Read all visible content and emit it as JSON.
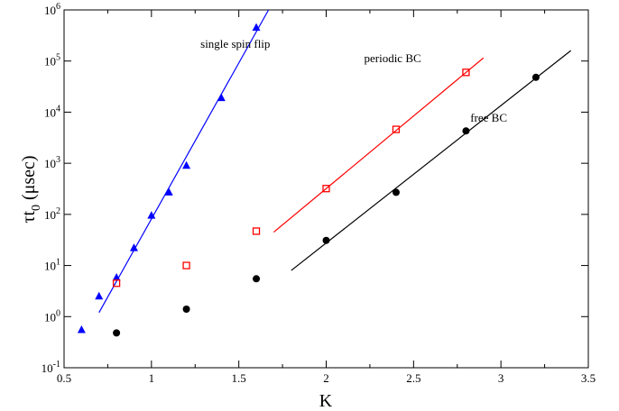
{
  "chart_data": {
    "type": "scatter",
    "xlabel": "K",
    "ylabel": "τt",
    "ylabel_subscript": "0",
    "ylabel_unit": " (μsec)",
    "xlim": [
      0.5,
      3.5
    ],
    "ylim_log10": [
      -1,
      6
    ],
    "yscale": "log",
    "grid": false,
    "x_ticks": [
      {
        "value": 0.5,
        "label": "0.5"
      },
      {
        "value": 1,
        "label": "1"
      },
      {
        "value": 1.5,
        "label": "1.5"
      },
      {
        "value": 2,
        "label": "2"
      },
      {
        "value": 2.5,
        "label": "2.5"
      },
      {
        "value": 3,
        "label": "3"
      },
      {
        "value": 3.5,
        "label": "3.5"
      }
    ],
    "y_ticks": [
      {
        "exp": -1,
        "base": "10",
        "sup": "-1"
      },
      {
        "exp": 0,
        "base": "10",
        "sup": "0"
      },
      {
        "exp": 1,
        "base": "10",
        "sup": "1"
      },
      {
        "exp": 2,
        "base": "10",
        "sup": "2"
      },
      {
        "exp": 3,
        "base": "10",
        "sup": "3"
      },
      {
        "exp": 4,
        "base": "10",
        "sup": "4"
      },
      {
        "exp": 5,
        "base": "10",
        "sup": "5"
      },
      {
        "exp": 6,
        "base": "10",
        "sup": "6"
      }
    ],
    "series": [
      {
        "name": "single spin flip",
        "marker": "triangle",
        "color": "#0000ff",
        "points": [
          {
            "x": 0.6,
            "y": 0.55
          },
          {
            "x": 0.7,
            "y": 2.5
          },
          {
            "x": 0.8,
            "y": 5.8
          },
          {
            "x": 0.9,
            "y": 22
          },
          {
            "x": 1.0,
            "y": 95
          },
          {
            "x": 1.1,
            "y": 270
          },
          {
            "x": 1.2,
            "y": 900
          },
          {
            "x": 1.4,
            "y": 19000
          },
          {
            "x": 1.6,
            "y": 450000
          }
        ],
        "fit": {
          "x": [
            0.7,
            1.67
          ],
          "y": [
            1.2,
            1000000
          ]
        }
      },
      {
        "name": "periodic BC",
        "marker": "square",
        "color": "#ff0000",
        "points": [
          {
            "x": 0.8,
            "y": 4.5
          },
          {
            "x": 1.2,
            "y": 10
          },
          {
            "x": 1.6,
            "y": 47
          },
          {
            "x": 2.0,
            "y": 320
          },
          {
            "x": 2.4,
            "y": 4600
          },
          {
            "x": 2.8,
            "y": 60000
          }
        ],
        "fit": {
          "x": [
            1.7,
            2.9
          ],
          "y": [
            45,
            115000
          ]
        }
      },
      {
        "name": "free BC",
        "marker": "circle",
        "color": "#000000",
        "points": [
          {
            "x": 0.8,
            "y": 0.48
          },
          {
            "x": 1.2,
            "y": 1.4
          },
          {
            "x": 1.6,
            "y": 5.5
          },
          {
            "x": 2.0,
            "y": 31
          },
          {
            "x": 2.4,
            "y": 270
          },
          {
            "x": 2.8,
            "y": 4300
          },
          {
            "x": 3.2,
            "y": 48000
          }
        ],
        "fit": {
          "x": [
            1.8,
            3.4
          ],
          "y": [
            8,
            160000
          ]
        }
      }
    ],
    "annotations": [
      {
        "text": "single spin flip",
        "x": 1.48,
        "y": 180000
      },
      {
        "text": "periodic BC",
        "x": 2.38,
        "y": 95000
      },
      {
        "text": "free BC",
        "x": 2.93,
        "y": 6500
      }
    ]
  }
}
